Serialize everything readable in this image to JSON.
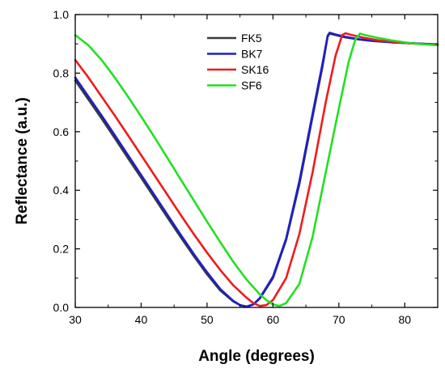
{
  "chart_data": {
    "type": "line",
    "title": "",
    "xlabel": "Angle (degrees)",
    "ylabel": "Reflectance (a.u.)",
    "xlim": [
      30,
      85
    ],
    "ylim": [
      0.0,
      1.0
    ],
    "x_ticks": [
      30,
      40,
      50,
      60,
      70,
      80
    ],
    "x_tick_labels": [
      "30",
      "40",
      "50",
      "60",
      "70",
      "80"
    ],
    "y_ticks": [
      0.0,
      0.2,
      0.4,
      0.6,
      0.8,
      1.0
    ],
    "y_tick_labels": [
      "0.0",
      "0.2",
      "0.4",
      "0.6",
      "0.8",
      "1.0"
    ],
    "grid": false,
    "legend_position": "top-center",
    "series": [
      {
        "name": "FK5",
        "color": "#3a3a3a",
        "points": [
          [
            30,
            0.775
          ],
          [
            32,
            0.71
          ],
          [
            34,
            0.645
          ],
          [
            36,
            0.578
          ],
          [
            38,
            0.51
          ],
          [
            40,
            0.443
          ],
          [
            42,
            0.375
          ],
          [
            44,
            0.307
          ],
          [
            46,
            0.24
          ],
          [
            48,
            0.175
          ],
          [
            50,
            0.113
          ],
          [
            52,
            0.058
          ],
          [
            54,
            0.02
          ],
          [
            55,
            0.008
          ],
          [
            56,
            0.003
          ],
          [
            57,
            0.01
          ],
          [
            58,
            0.03
          ],
          [
            60,
            0.1
          ],
          [
            62,
            0.23
          ],
          [
            64,
            0.42
          ],
          [
            66,
            0.65
          ],
          [
            67.5,
            0.82
          ],
          [
            68.3,
            0.925
          ],
          [
            68.6,
            0.935
          ],
          [
            69.5,
            0.93
          ],
          [
            71,
            0.922
          ],
          [
            73,
            0.915
          ],
          [
            75,
            0.91
          ],
          [
            78,
            0.905
          ],
          [
            81,
            0.902
          ],
          [
            85,
            0.898
          ]
        ]
      },
      {
        "name": "BK7",
        "color": "#1f1fc8",
        "points": [
          [
            30,
            0.785
          ],
          [
            32,
            0.72
          ],
          [
            34,
            0.655
          ],
          [
            36,
            0.588
          ],
          [
            38,
            0.52
          ],
          [
            40,
            0.452
          ],
          [
            42,
            0.384
          ],
          [
            44,
            0.316
          ],
          [
            46,
            0.248
          ],
          [
            48,
            0.182
          ],
          [
            50,
            0.12
          ],
          [
            52,
            0.063
          ],
          [
            54,
            0.022
          ],
          [
            55,
            0.008
          ],
          [
            56,
            0.002
          ],
          [
            57,
            0.01
          ],
          [
            58,
            0.032
          ],
          [
            60,
            0.105
          ],
          [
            62,
            0.235
          ],
          [
            64,
            0.43
          ],
          [
            66,
            0.66
          ],
          [
            67.5,
            0.83
          ],
          [
            68.3,
            0.928
          ],
          [
            68.6,
            0.938
          ],
          [
            69.5,
            0.932
          ],
          [
            71,
            0.924
          ],
          [
            73,
            0.916
          ],
          [
            75,
            0.911
          ],
          [
            78,
            0.906
          ],
          [
            81,
            0.902
          ],
          [
            85,
            0.898
          ]
        ]
      },
      {
        "name": "SK16",
        "color": "#ee1c1c",
        "points": [
          [
            30,
            0.845
          ],
          [
            32,
            0.785
          ],
          [
            34,
            0.72
          ],
          [
            36,
            0.655
          ],
          [
            38,
            0.588
          ],
          [
            40,
            0.52
          ],
          [
            42,
            0.452
          ],
          [
            44,
            0.384
          ],
          [
            46,
            0.316
          ],
          [
            48,
            0.25
          ],
          [
            50,
            0.187
          ],
          [
            52,
            0.128
          ],
          [
            54,
            0.075
          ],
          [
            56,
            0.033
          ],
          [
            57,
            0.015
          ],
          [
            58,
            0.005
          ],
          [
            59,
            0.008
          ],
          [
            60,
            0.025
          ],
          [
            62,
            0.1
          ],
          [
            64,
            0.25
          ],
          [
            66,
            0.46
          ],
          [
            68,
            0.7
          ],
          [
            69.5,
            0.86
          ],
          [
            70.5,
            0.93
          ],
          [
            71,
            0.936
          ],
          [
            72,
            0.93
          ],
          [
            74,
            0.92
          ],
          [
            76,
            0.912
          ],
          [
            79,
            0.905
          ],
          [
            82,
            0.9
          ],
          [
            85,
            0.897
          ]
        ]
      },
      {
        "name": "SF6",
        "color": "#22e022",
        "points": [
          [
            30,
            0.93
          ],
          [
            32,
            0.895
          ],
          [
            34,
            0.845
          ],
          [
            36,
            0.785
          ],
          [
            38,
            0.72
          ],
          [
            40,
            0.652
          ],
          [
            42,
            0.582
          ],
          [
            44,
            0.51
          ],
          [
            46,
            0.437
          ],
          [
            48,
            0.365
          ],
          [
            50,
            0.293
          ],
          [
            52,
            0.223
          ],
          [
            54,
            0.155
          ],
          [
            56,
            0.095
          ],
          [
            58,
            0.045
          ],
          [
            59,
            0.025
          ],
          [
            60,
            0.01
          ],
          [
            61,
            0.005
          ],
          [
            62,
            0.015
          ],
          [
            64,
            0.08
          ],
          [
            66,
            0.24
          ],
          [
            68,
            0.46
          ],
          [
            70,
            0.68
          ],
          [
            71.5,
            0.84
          ],
          [
            72.5,
            0.915
          ],
          [
            73.2,
            0.935
          ],
          [
            74,
            0.93
          ],
          [
            76,
            0.92
          ],
          [
            78,
            0.912
          ],
          [
            80,
            0.905
          ],
          [
            82,
            0.9
          ],
          [
            85,
            0.895
          ]
        ]
      }
    ]
  }
}
